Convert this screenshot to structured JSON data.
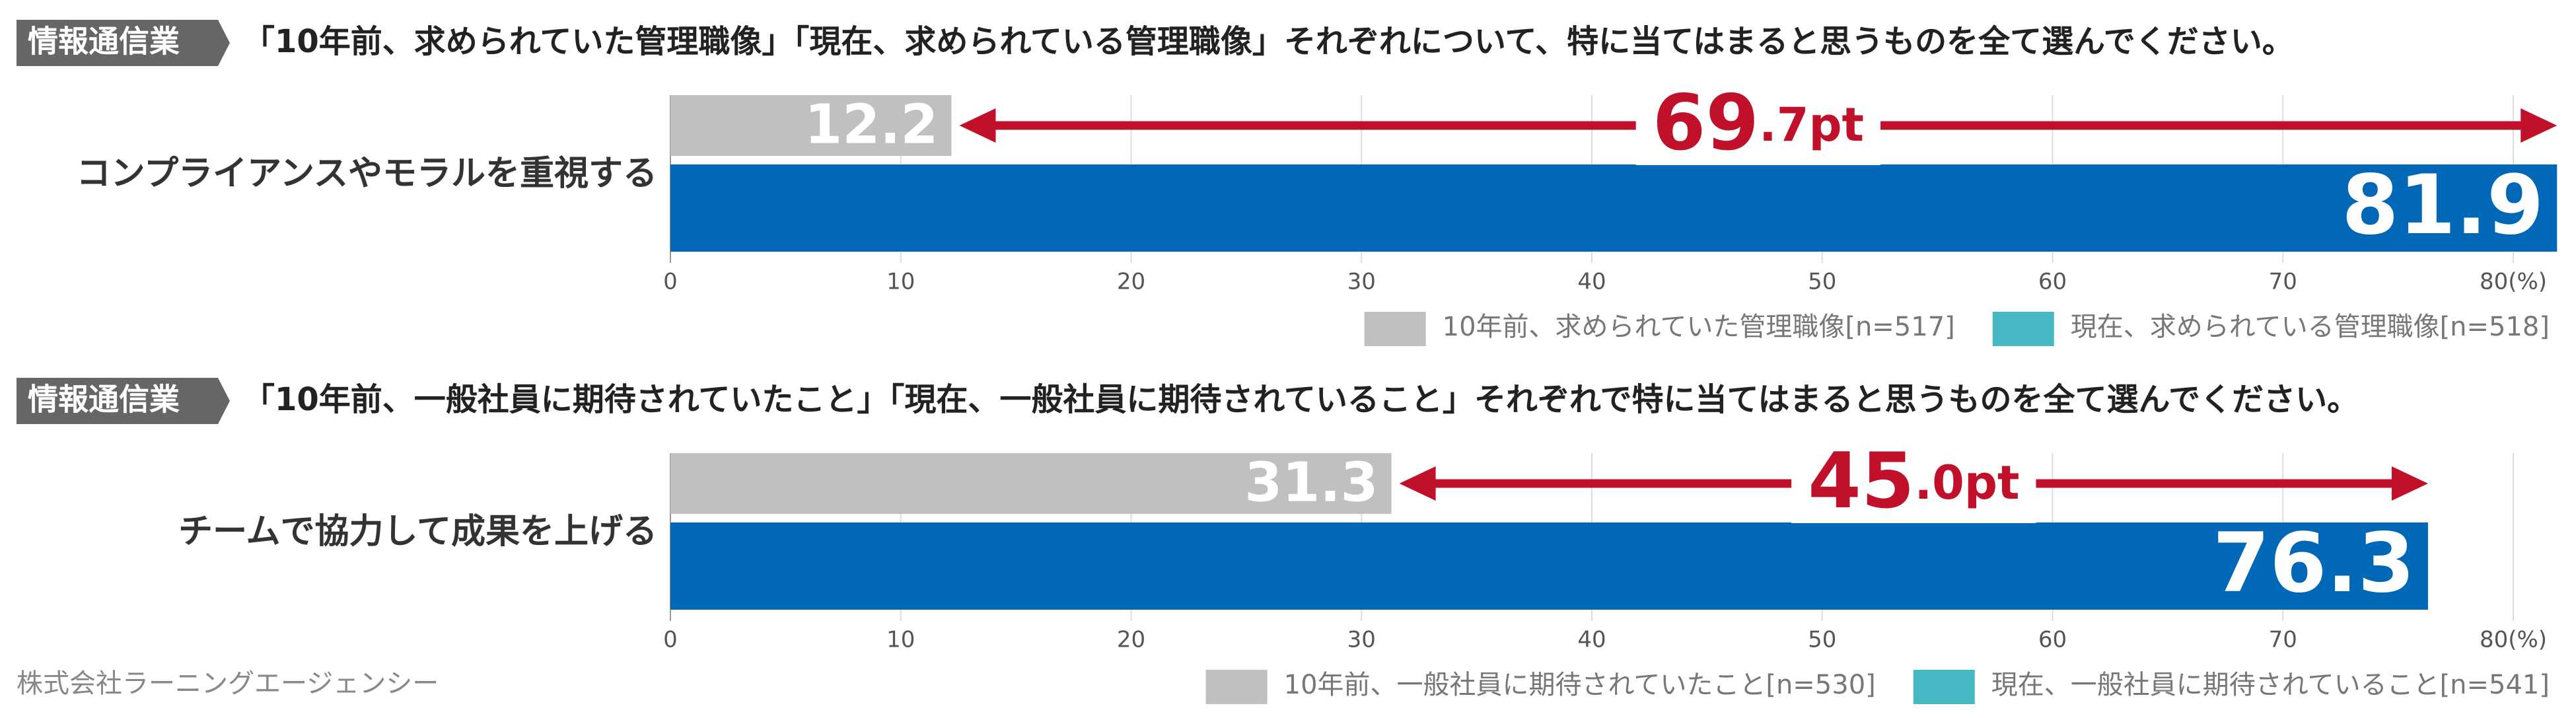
{
  "chart_data": [
    {
      "type": "bar",
      "tag": "情報通信業",
      "title": "「10年前、求められていた管理職像」「現在、求められている管理職像」それぞれについて、特に当てはまると思うものを全て選んでください。",
      "categories": [
        "コンプライアンスやモラルを重視する"
      ],
      "series": [
        {
          "name": "10年前、求められていた管理職像[n=517]",
          "color": "#c0c0c0",
          "legend_color": "#c0c0c0",
          "values": [
            12.2
          ]
        },
        {
          "name": "現在、求められている管理職像[n=518]",
          "color": "#0068b7",
          "legend_color": "#45b8c4",
          "values": [
            81.9
          ]
        }
      ],
      "annotation": {
        "value": 69.7,
        "label": "69.7pt",
        "color": "#c0102a"
      },
      "xlim": [
        0,
        80
      ],
      "xticks": [
        0,
        10,
        20,
        30,
        40,
        50,
        60,
        70,
        {
          "value": 80,
          "label": "80(%)"
        }
      ],
      "grid": true
    },
    {
      "type": "bar",
      "tag": "情報通信業",
      "title": "「10年前、一般社員に期待されていたこと」「現在、一般社員に期待されていること」それぞれで特に当てはまると思うものを全て選んでください。",
      "categories": [
        "チームで協力して成果を上げる"
      ],
      "series": [
        {
          "name": "10年前、一般社員に期待されていたこと[n=530]",
          "color": "#c0c0c0",
          "legend_color": "#c0c0c0",
          "values": [
            31.3
          ]
        },
        {
          "name": "現在、一般社員に期待されていること[n=541]",
          "color": "#0068b7",
          "legend_color": "#45b8c4",
          "values": [
            76.3
          ]
        }
      ],
      "annotation": {
        "value": 45.0,
        "label": "45.0pt",
        "color": "#c0102a"
      },
      "xlim": [
        0,
        80
      ],
      "xticks": [
        0,
        10,
        20,
        30,
        40,
        50,
        60,
        70,
        {
          "value": 80,
          "label": "80(%)"
        }
      ],
      "grid": true
    }
  ],
  "source": "株式会社ラーニングエージェンシー"
}
